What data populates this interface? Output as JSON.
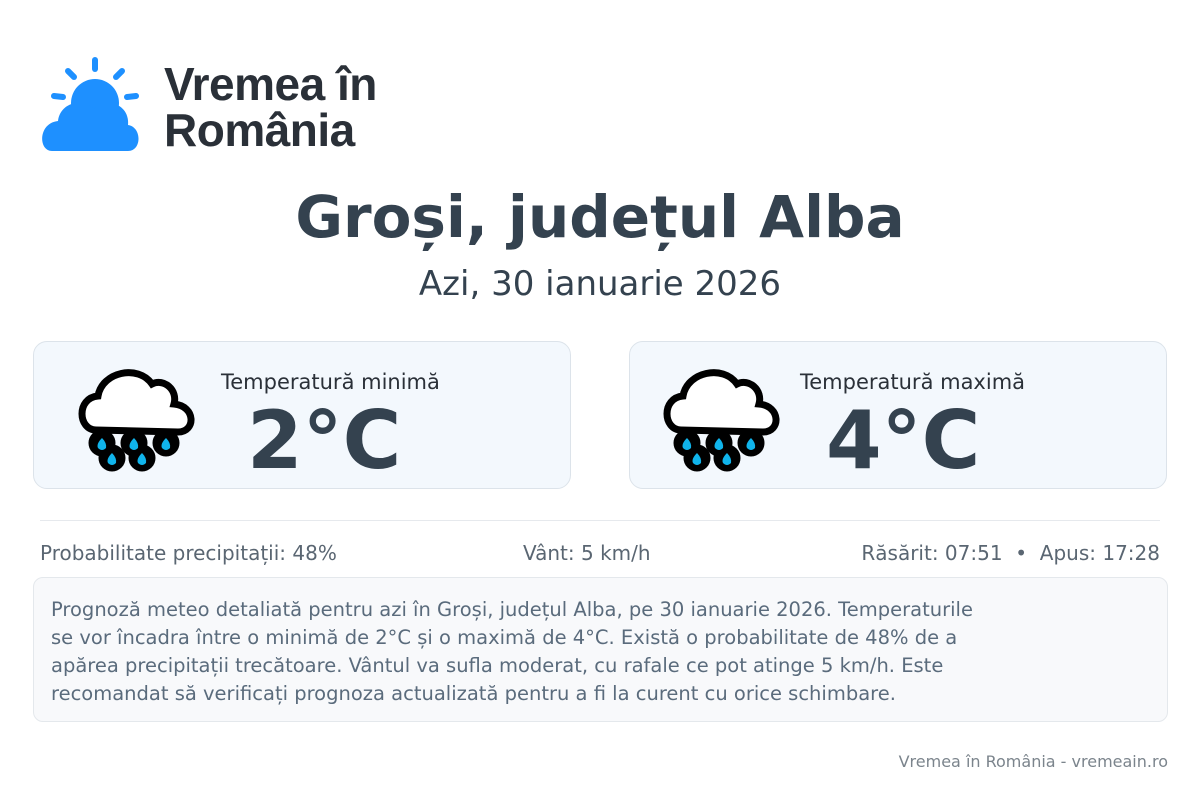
{
  "brand": {
    "name_line1": "Vremea în",
    "name_line2": "România",
    "color": "#1e90ff"
  },
  "header": {
    "title": "Groși, județul Alba",
    "subtitle": "Azi, 30 ianuarie 2026"
  },
  "cards": [
    {
      "label": "Temperatură minimă",
      "value": "2°C",
      "icon": "rain-cloud-icon"
    },
    {
      "label": "Temperatură maximă",
      "value": "4°C",
      "icon": "rain-cloud-icon"
    }
  ],
  "info": {
    "precipitation": "Probabilitate precipitații: 48%",
    "wind": "Vânt: 5 km/h",
    "sun": "Răsărit: 07:51  •  Apus: 17:28"
  },
  "description": {
    "lines": [
      "Prognoză meteo detaliată pentru azi în Groși, județul Alba, pe 30 ianuarie 2026. Temperaturile",
      "se vor încadra între o minimă de 2°C și o maximă de 4°C. Există o probabilitate de 48% de a",
      "apărea precipitații trecătoare. Vântul va sufla moderat, cu rafale ce pot atinge 5 km/h. Este",
      "recomandat să verificați prognoza actualizată pentru a fi la curent cu orice schimbare."
    ]
  },
  "footer": {
    "text": "Vremea în România - vremeain.ro"
  }
}
